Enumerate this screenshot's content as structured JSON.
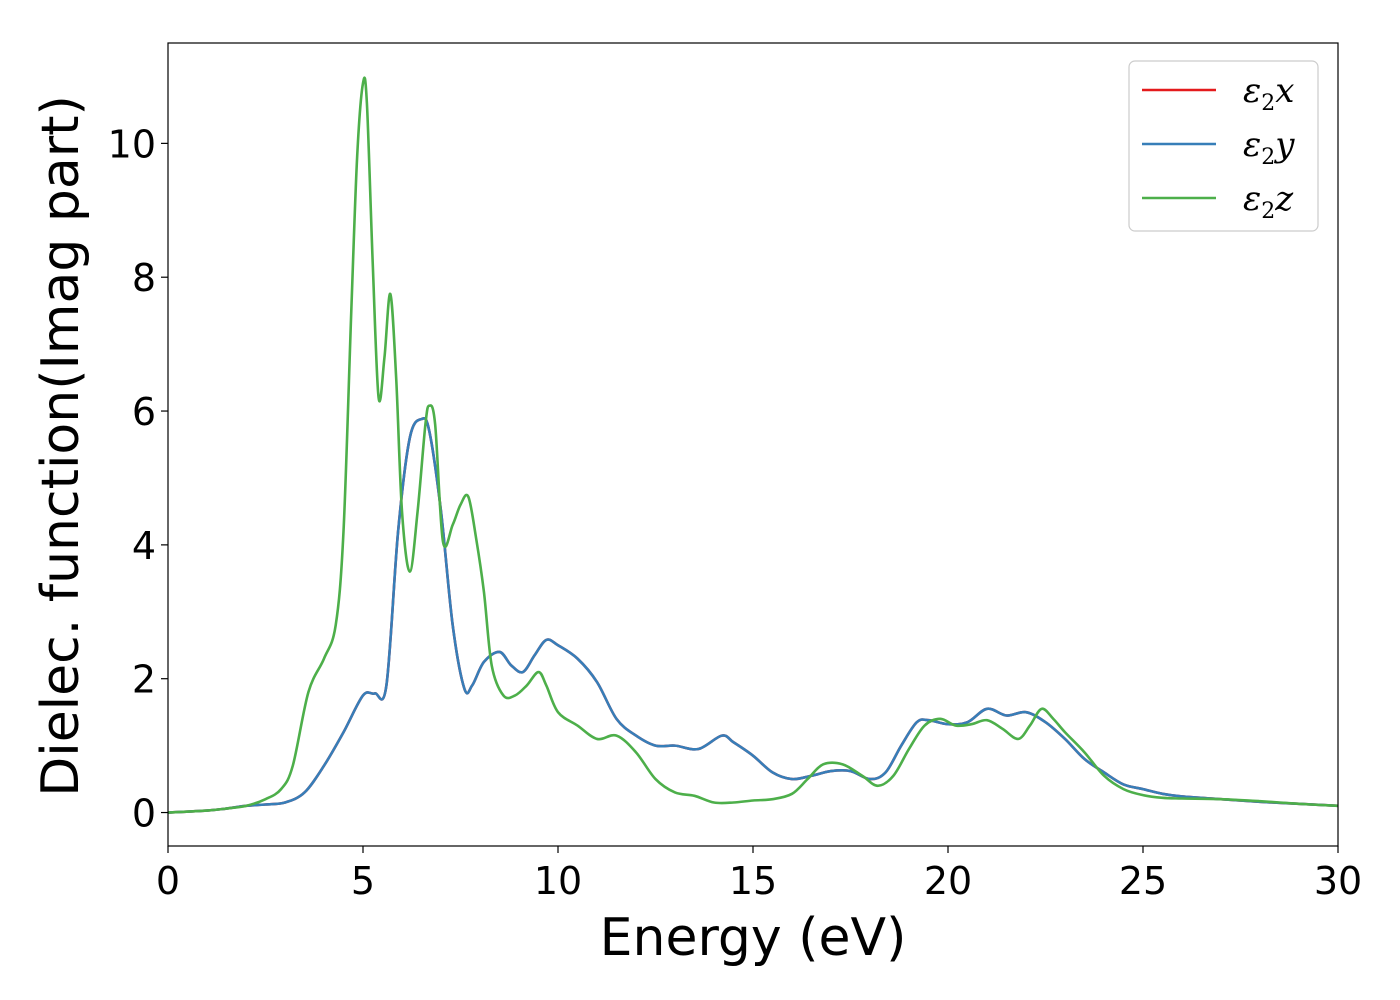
{
  "chart_data": {
    "type": "line",
    "title": "",
    "xlabel": "Energy (eV)",
    "ylabel": "Dielec. function(Imag part)",
    "xlim": [
      0,
      30
    ],
    "ylim": [
      -0.5,
      11.5
    ],
    "xticks": [
      0,
      5,
      10,
      15,
      20,
      25,
      30
    ],
    "yticks": [
      0,
      2,
      4,
      6,
      8,
      10
    ],
    "grid": false,
    "legend_position": "top-right",
    "series": [
      {
        "name": "ε₂x",
        "legend_base": "ε",
        "legend_sub": "2",
        "legend_var": "x",
        "color": "#e41a1c",
        "x": [
          0,
          1,
          1.5,
          2,
          2.5,
          3,
          3.5,
          4,
          4.5,
          5,
          5.3,
          5.6,
          5.9,
          6.2,
          6.5,
          6.7,
          7,
          7.3,
          7.6,
          7.8,
          8.1,
          8.5,
          8.8,
          9.1,
          9.4,
          9.7,
          10,
          10.5,
          11,
          11.5,
          12,
          12.5,
          13,
          13.6,
          14.2,
          14.5,
          15,
          15.5,
          16,
          16.5,
          17,
          17.5,
          18,
          18.4,
          18.8,
          19.2,
          19.5,
          20,
          20.5,
          21,
          21.5,
          22,
          22.5,
          23,
          23.5,
          24,
          24.5,
          25,
          25.5,
          26,
          27,
          28,
          29,
          30
        ],
        "values": [
          0,
          0.03,
          0.06,
          0.1,
          0.12,
          0.15,
          0.3,
          0.7,
          1.2,
          1.75,
          1.78,
          1.9,
          4.2,
          5.6,
          5.88,
          5.7,
          4.5,
          2.8,
          1.85,
          1.9,
          2.25,
          2.4,
          2.2,
          2.1,
          2.35,
          2.58,
          2.5,
          2.3,
          1.95,
          1.4,
          1.15,
          1.0,
          1.0,
          0.95,
          1.15,
          1.05,
          0.85,
          0.6,
          0.5,
          0.55,
          0.62,
          0.62,
          0.5,
          0.6,
          1.0,
          1.35,
          1.38,
          1.32,
          1.35,
          1.55,
          1.45,
          1.5,
          1.35,
          1.1,
          0.8,
          0.6,
          0.42,
          0.35,
          0.28,
          0.24,
          0.2,
          0.16,
          0.13,
          0.1
        ]
      },
      {
        "name": "ε₂y",
        "legend_base": "ε",
        "legend_sub": "2",
        "legend_var": "y",
        "color": "#377eb8",
        "x": [
          0,
          1,
          1.5,
          2,
          2.5,
          3,
          3.5,
          4,
          4.5,
          5,
          5.3,
          5.6,
          5.9,
          6.2,
          6.5,
          6.7,
          7,
          7.3,
          7.6,
          7.8,
          8.1,
          8.5,
          8.8,
          9.1,
          9.4,
          9.7,
          10,
          10.5,
          11,
          11.5,
          12,
          12.5,
          13,
          13.6,
          14.2,
          14.5,
          15,
          15.5,
          16,
          16.5,
          17,
          17.5,
          18,
          18.4,
          18.8,
          19.2,
          19.5,
          20,
          20.5,
          21,
          21.5,
          22,
          22.5,
          23,
          23.5,
          24,
          24.5,
          25,
          25.5,
          26,
          27,
          28,
          29,
          30
        ],
        "values": [
          0,
          0.03,
          0.06,
          0.1,
          0.12,
          0.15,
          0.3,
          0.7,
          1.2,
          1.75,
          1.78,
          1.9,
          4.2,
          5.6,
          5.88,
          5.7,
          4.5,
          2.8,
          1.85,
          1.9,
          2.25,
          2.4,
          2.2,
          2.1,
          2.35,
          2.58,
          2.5,
          2.3,
          1.95,
          1.4,
          1.15,
          1.0,
          1.0,
          0.95,
          1.15,
          1.05,
          0.85,
          0.6,
          0.5,
          0.55,
          0.62,
          0.62,
          0.5,
          0.6,
          1.0,
          1.35,
          1.38,
          1.32,
          1.35,
          1.55,
          1.45,
          1.5,
          1.35,
          1.1,
          0.8,
          0.6,
          0.42,
          0.35,
          0.28,
          0.24,
          0.2,
          0.16,
          0.13,
          0.1
        ]
      },
      {
        "name": "ε₂z",
        "legend_base": "ε",
        "legend_sub": "2",
        "legend_var": "z",
        "color": "#4daf4a",
        "x": [
          0,
          1,
          1.5,
          2,
          2.5,
          2.9,
          3.2,
          3.6,
          4,
          4.3,
          4.5,
          4.7,
          4.85,
          5,
          5.1,
          5.25,
          5.4,
          5.55,
          5.7,
          5.85,
          6.0,
          6.2,
          6.4,
          6.6,
          6.7,
          6.85,
          7.05,
          7.3,
          7.5,
          7.7,
          7.9,
          8.1,
          8.3,
          8.6,
          8.9,
          9.2,
          9.5,
          9.7,
          10,
          10.5,
          11,
          11.5,
          12,
          12.5,
          13,
          13.5,
          14,
          14.5,
          15,
          15.5,
          16,
          16.4,
          16.8,
          17.3,
          17.8,
          18.2,
          18.6,
          19,
          19.4,
          19.8,
          20.2,
          20.6,
          21,
          21.4,
          21.8,
          22.1,
          22.4,
          22.7,
          23,
          23.5,
          24,
          24.5,
          25,
          25.5,
          26,
          27,
          28,
          29,
          30
        ],
        "values": [
          0,
          0.03,
          0.06,
          0.1,
          0.2,
          0.35,
          0.7,
          1.8,
          2.3,
          2.8,
          4.2,
          7.5,
          9.8,
          10.9,
          10.6,
          8.2,
          6.2,
          6.8,
          7.75,
          6.5,
          4.5,
          3.6,
          4.5,
          5.8,
          6.08,
          5.8,
          4.05,
          4.3,
          4.6,
          4.72,
          4.1,
          3.3,
          2.2,
          1.75,
          1.75,
          1.9,
          2.1,
          1.9,
          1.5,
          1.3,
          1.1,
          1.15,
          0.9,
          0.5,
          0.3,
          0.25,
          0.15,
          0.15,
          0.18,
          0.2,
          0.28,
          0.5,
          0.72,
          0.72,
          0.55,
          0.4,
          0.55,
          0.95,
          1.3,
          1.4,
          1.3,
          1.32,
          1.38,
          1.25,
          1.1,
          1.3,
          1.55,
          1.4,
          1.2,
          0.9,
          0.55,
          0.35,
          0.26,
          0.22,
          0.21,
          0.2,
          0.17,
          0.13,
          0.1
        ]
      }
    ]
  }
}
